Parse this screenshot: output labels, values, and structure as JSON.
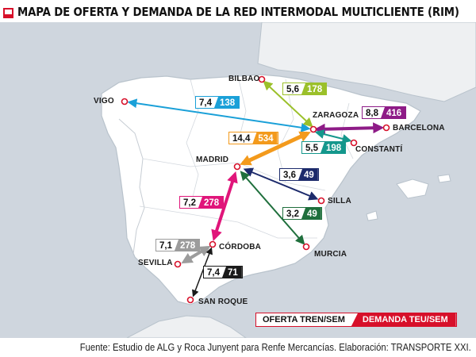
{
  "title": "MAPA DE OFERTA Y DEMANDA DE LA RED INTERMODAL MULTICLIENTE (RIM)",
  "source": "Fuente: Estudio de ALG y Roca Junyent para Renfe Mercancías. Elaboración: TRANSPORTE XXI.",
  "legend": {
    "offer": "OFERTA TREN/SEM",
    "demand": "DEMANDA TEU/SEM"
  },
  "colors": {
    "brand": "#d7102a",
    "vigo": "#1aa0d8",
    "bilbao": "#9bc02a",
    "barcelona": "#8e1b87",
    "constanti": "#14978c",
    "madrid": "#f39a1c",
    "silla": "#1c2a6b",
    "murcia": "#1f6f3c",
    "cordoba": "#e0157a",
    "sevilla": "#9c9c9c",
    "sanroque": "#1a1a1a"
  },
  "cities": {
    "bilbao": "BILBAO",
    "vigo": "VIGO",
    "zaragoza": "ZARAGOZA",
    "barcelona": "BARCELONA",
    "constanti": "CONSTANTÍ",
    "madrid": "MADRID",
    "silla": "SILLA",
    "cordoba": "CÓRDOBA",
    "sevilla": "SEVILLA",
    "murcia": "MURCIA",
    "sanroque": "SAN ROQUE"
  },
  "routes": [
    {
      "id": "vigo",
      "offer": "7,4",
      "demand": "138"
    },
    {
      "id": "bilbao",
      "offer": "5,6",
      "demand": "178"
    },
    {
      "id": "barcelona",
      "offer": "8,8",
      "demand": "416"
    },
    {
      "id": "constanti",
      "offer": "5,5",
      "demand": "198"
    },
    {
      "id": "madrid",
      "offer": "14,4",
      "demand": "534"
    },
    {
      "id": "silla",
      "offer": "3,6",
      "demand": "49"
    },
    {
      "id": "murcia",
      "offer": "3,2",
      "demand": "49"
    },
    {
      "id": "cordoba",
      "offer": "7,2",
      "demand": "278"
    },
    {
      "id": "sevilla",
      "offer": "7,1",
      "demand": "278"
    },
    {
      "id": "sanroque",
      "offer": "7,4",
      "demand": "71"
    }
  ]
}
